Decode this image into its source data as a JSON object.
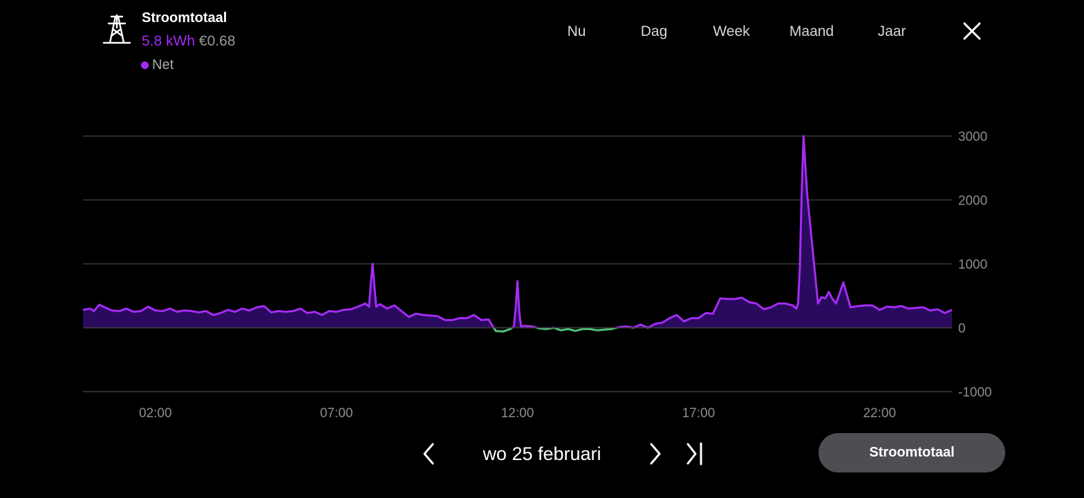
{
  "header": {
    "title": "Stroomtotaal",
    "energy_value": "5.8",
    "energy_unit": "kWh",
    "cost": "€0.68",
    "legend_label": "Net",
    "icon": "power-pylon-icon"
  },
  "tabs": [
    {
      "label": "Nu",
      "active": false
    },
    {
      "label": "Dag",
      "active": true
    },
    {
      "label": "Week",
      "active": false
    },
    {
      "label": "Maand",
      "active": false
    },
    {
      "label": "Jaar",
      "active": false
    }
  ],
  "close_icon": "close-icon",
  "date_nav": {
    "date": "wo 25 februari",
    "prev_icon": "chevron-left-icon",
    "next_icon": "chevron-right-icon",
    "last_icon": "skip-to-end-icon"
  },
  "source_button": "Stroomtotaal",
  "colors": {
    "consumption": "#a32cf3",
    "consumption_fill": "#2a0a5e",
    "return": "#4fc27a",
    "grid": "#3a3a3e",
    "active_tab": "#2c2d31",
    "button": "#4d4e53"
  },
  "chart_data": {
    "type": "area",
    "ylim": [
      -1000,
      3000
    ],
    "xlim": [
      0,
      24
    ],
    "y_ticks": [
      3000,
      2000,
      1000,
      0,
      -1000
    ],
    "x_ticks": [
      {
        "label": "02:00",
        "hour": 2
      },
      {
        "label": "07:00",
        "hour": 7
      },
      {
        "label": "12:00",
        "hour": 12
      },
      {
        "label": "17:00",
        "hour": 17
      },
      {
        "label": "22:00",
        "hour": 22
      }
    ],
    "grid": true,
    "series": [
      {
        "name": "Net",
        "x": [
          0,
          0.2,
          0.3,
          0.45,
          0.6,
          0.8,
          1,
          1.2,
          1.4,
          1.6,
          1.8,
          2,
          2.2,
          2.4,
          2.6,
          2.8,
          3,
          3.2,
          3.4,
          3.6,
          3.8,
          4,
          4.2,
          4.4,
          4.6,
          4.8,
          5,
          5.2,
          5.4,
          5.6,
          5.8,
          6,
          6.2,
          6.4,
          6.6,
          6.8,
          7,
          7.2,
          7.4,
          7.6,
          7.8,
          7.9,
          7.95,
          8,
          8.05,
          8.1,
          8.2,
          8.4,
          8.6,
          8.8,
          9,
          9.2,
          9.4,
          9.6,
          9.8,
          10,
          10.2,
          10.4,
          10.6,
          10.8,
          11,
          11.2,
          11.4,
          11.6,
          11.8,
          11.9,
          11.95,
          12,
          12.05,
          12.1,
          12.2,
          12.4,
          12.6,
          12.8,
          13,
          13.2,
          13.4,
          13.6,
          13.8,
          14,
          14.2,
          14.4,
          14.6,
          14.8,
          15,
          15.2,
          15.4,
          15.6,
          15.8,
          16,
          16.2,
          16.4,
          16.6,
          16.8,
          17,
          17.2,
          17.4,
          17.6,
          17.8,
          18,
          18.2,
          18.4,
          18.6,
          18.8,
          19,
          19.2,
          19.4,
          19.6,
          19.7,
          19.75,
          19.8,
          19.85,
          19.9,
          20,
          20.2,
          20.3,
          20.4,
          20.5,
          20.6,
          20.7,
          20.8,
          21,
          21.2,
          21.4,
          21.6,
          21.8,
          22,
          22.2,
          22.4,
          22.6,
          22.8,
          23,
          23.2,
          23.4,
          23.6,
          23.8,
          24
        ],
        "y": [
          280,
          300,
          260,
          360,
          320,
          270,
          260,
          300,
          250,
          260,
          330,
          270,
          260,
          300,
          250,
          270,
          260,
          240,
          260,
          200,
          230,
          280,
          250,
          300,
          270,
          320,
          340,
          240,
          260,
          250,
          260,
          300,
          230,
          250,
          200,
          260,
          250,
          280,
          290,
          330,
          380,
          330,
          700,
          1000,
          650,
          330,
          370,
          300,
          350,
          260,
          170,
          220,
          200,
          190,
          180,
          120,
          120,
          150,
          150,
          200,
          120,
          130,
          -50,
          -60,
          -20,
          20,
          300,
          730,
          250,
          20,
          30,
          20,
          -10,
          -20,
          0,
          -40,
          -20,
          -50,
          -20,
          -20,
          -40,
          -30,
          -20,
          10,
          20,
          0,
          50,
          0,
          60,
          80,
          150,
          200,
          100,
          150,
          150,
          230,
          220,
          460,
          450,
          450,
          470,
          400,
          380,
          290,
          320,
          380,
          380,
          350,
          300,
          380,
          950,
          2100,
          3000,
          2100,
          950,
          380,
          480,
          460,
          560,
          450,
          380,
          710,
          320,
          340,
          350,
          350,
          280,
          330,
          320,
          340,
          300,
          310,
          320,
          270,
          290,
          230,
          280
        ]
      }
    ]
  }
}
